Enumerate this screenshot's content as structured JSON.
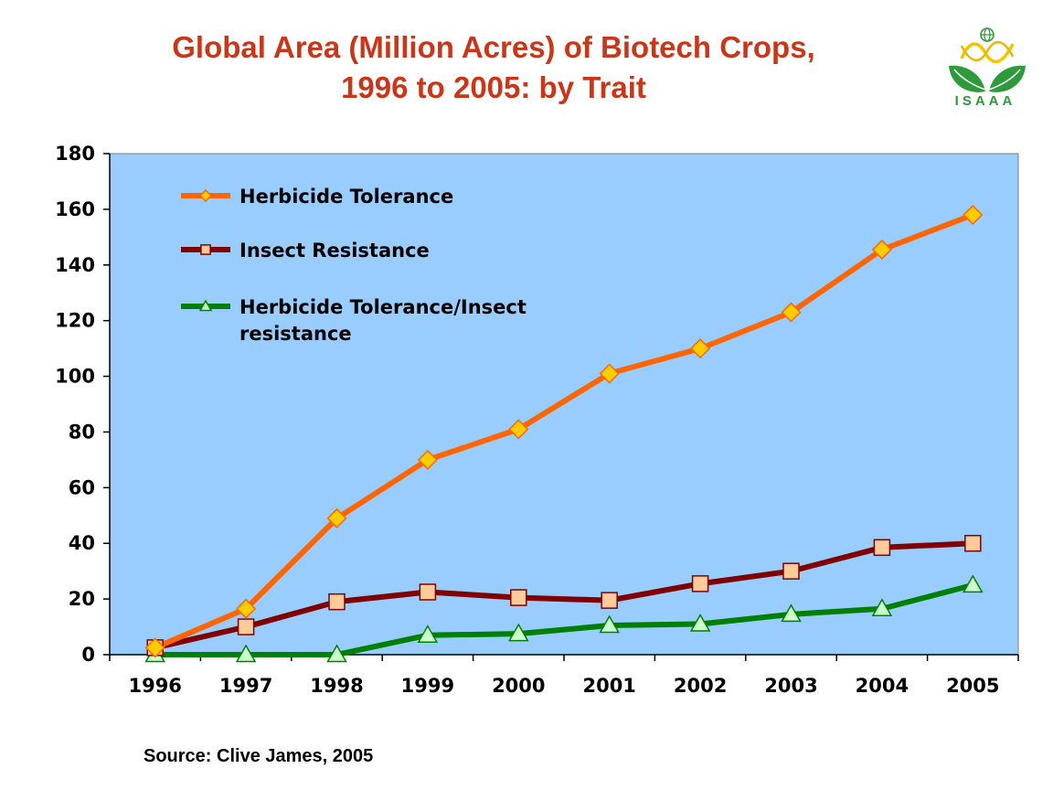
{
  "title_line1": "Global Area (Million Acres) of Biotech Crops,",
  "title_line2": "1996 to 2005: by Trait",
  "logo_text": "ISAAA",
  "source": "Source: Clive James, 2005",
  "chart_data": {
    "type": "line",
    "categories": [
      "1996",
      "1997",
      "1998",
      "1999",
      "2000",
      "2001",
      "2002",
      "2003",
      "2004",
      "2005"
    ],
    "ylim": [
      0,
      180
    ],
    "yticks": [
      0,
      20,
      40,
      60,
      80,
      100,
      120,
      140,
      160,
      180
    ],
    "plot_background": "#99ccff",
    "legend_position": "top-left",
    "series": [
      {
        "name": "Herbicide Tolerance",
        "line_color": "#ff6600",
        "marker": "diamond",
        "marker_fill": "#ffcc00",
        "values": [
          2.5,
          16.5,
          49,
          70,
          81,
          101,
          110,
          123,
          145.5,
          158
        ]
      },
      {
        "name": "Insect Resistance",
        "line_color": "#800000",
        "marker": "square",
        "marker_fill": "#ffcc99",
        "values": [
          2.5,
          10,
          19,
          22.5,
          20.5,
          19.5,
          25.5,
          30,
          38.5,
          40
        ]
      },
      {
        "name": "Herbicide Tolerance/Insect resistance",
        "name_lines": [
          "Herbicide Tolerance/Insect",
          "resistance"
        ],
        "line_color": "#008000",
        "marker": "triangle",
        "marker_fill": "#ccffcc",
        "values": [
          0,
          0,
          0,
          7,
          7.5,
          10.5,
          11,
          14.5,
          16.5,
          25
        ]
      }
    ]
  }
}
